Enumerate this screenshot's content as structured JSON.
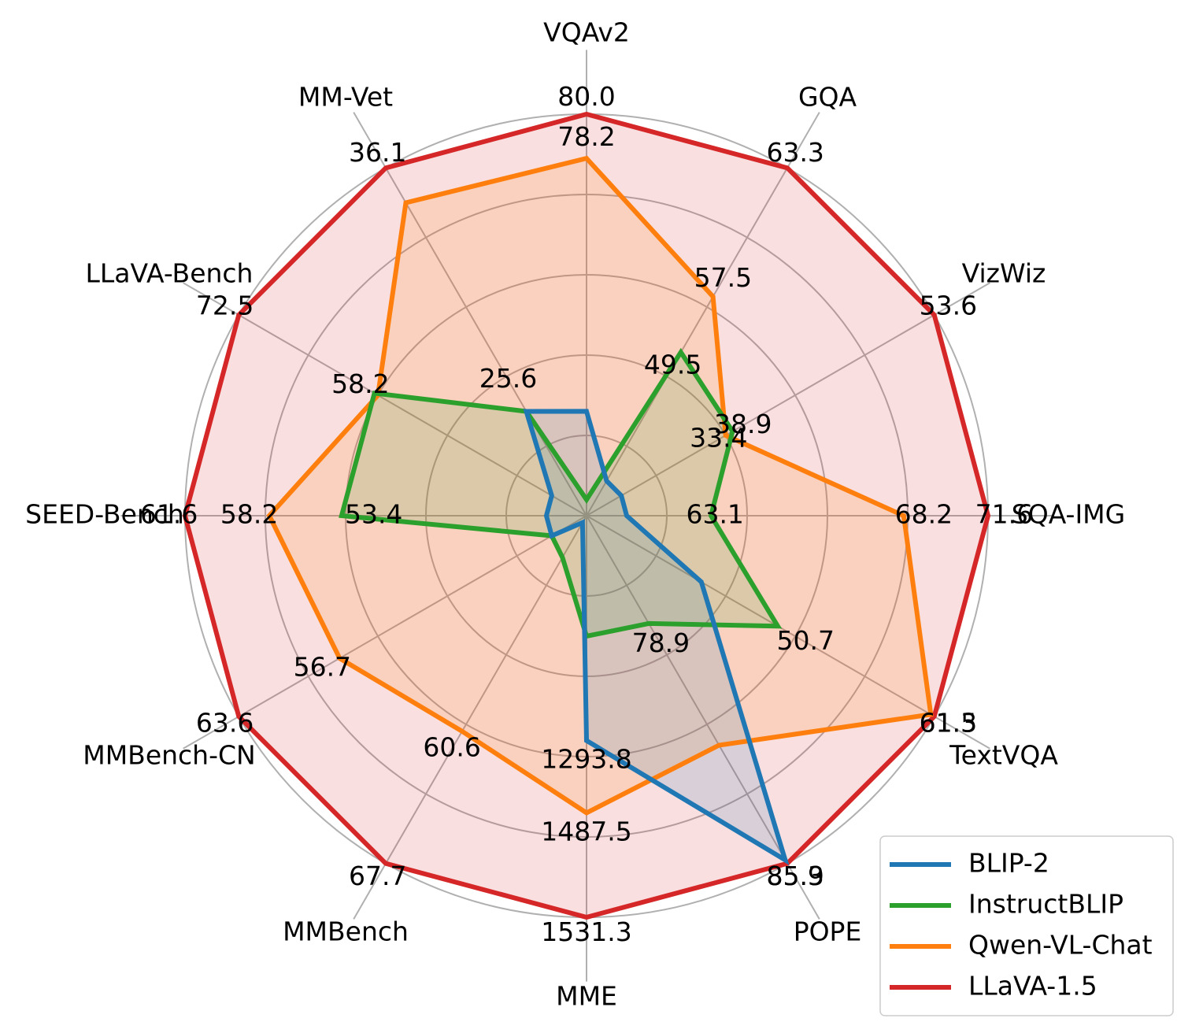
{
  "chart_data": {
    "type": "radar",
    "axes": [
      "VQAv2",
      "GQA",
      "VizWiz",
      "SQA-IMG",
      "TextVQA",
      "POPE",
      "MME",
      "MMBench",
      "MMBench-CN",
      "SEED-Bench",
      "LLaVA-Bench",
      "MM-Vet"
    ],
    "rings": 5,
    "grid": true,
    "legend_position": "bottom-right",
    "series": [
      {
        "name": "BLIP-2",
        "color": "#1f77b4",
        "fraction_of_max": [
          0.26,
          0.1,
          0.1,
          0.1,
          0.33,
          0.99,
          0.56,
          0.02,
          0.1,
          0.1,
          0.1,
          0.3
        ],
        "labels": [
          "",
          "",
          "",
          "",
          "",
          "85.3",
          "1293.8",
          "",
          "",
          "",
          "",
          ""
        ]
      },
      {
        "name": "InstructBLIP",
        "color": "#2ca02c",
        "fraction_of_max": [
          0.04,
          0.47,
          0.42,
          0.31,
          0.55,
          0.31,
          0.3,
          0.12,
          0.1,
          0.61,
          0.61,
          0.3
        ],
        "labels": [
          "",
          "49.5",
          "33.4",
          "63.1",
          "50.7",
          "78.9",
          "",
          "",
          "",
          "53.4",
          "",
          "25.6"
        ],
        "label_points": [
          [
            0,
            0.0
          ],
          [
            1,
            0.43
          ],
          [
            2,
            0.38
          ],
          [
            3,
            0.32
          ],
          [
            4,
            0.63
          ],
          [
            5,
            0.37
          ],
          [
            6,
            0.0
          ],
          [
            7,
            0.0
          ],
          [
            8,
            0.0
          ],
          [
            9,
            0.53
          ],
          [
            10,
            0.0
          ],
          [
            11,
            0.39
          ]
        ]
      },
      {
        "name": "Qwen-VL-Chat",
        "color": "#ff7f0e",
        "fraction_of_max": [
          0.89,
          0.63,
          0.4,
          0.79,
          0.99,
          0.66,
          0.74,
          0.62,
          0.71,
          0.79,
          0.6,
          0.9
        ],
        "labels": [
          "78.2",
          "57.5",
          "38.9",
          "68.2",
          "61.3",
          "",
          "1487.5",
          "60.6",
          "56.7",
          "58.2",
          "58.2",
          ""
        ]
      },
      {
        "name": "LLaVA-1.5",
        "color": "#d62728",
        "fraction_of_max": [
          1.0,
          1.0,
          1.0,
          1.0,
          1.0,
          1.0,
          1.0,
          1.0,
          1.0,
          1.0,
          1.0,
          1.0
        ],
        "labels": [
          "80.0",
          "63.3",
          "53.6",
          "71.6",
          "61.5",
          "85.9",
          "1531.3",
          "67.7",
          "63.6",
          "61.6",
          "72.5",
          "36.1"
        ]
      }
    ]
  }
}
